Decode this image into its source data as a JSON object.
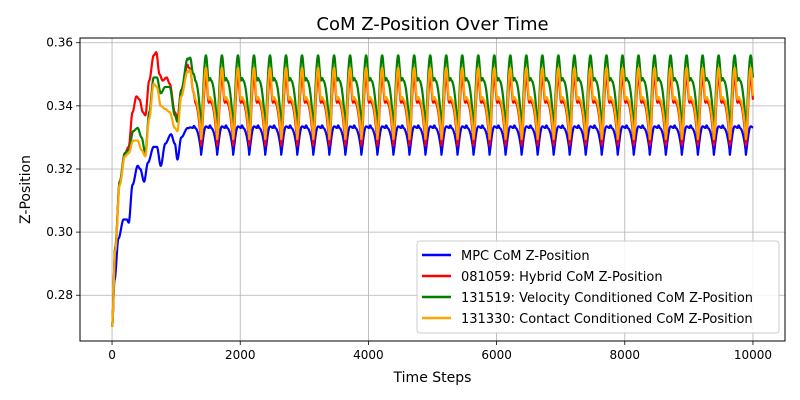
{
  "chart_data": {
    "type": "line",
    "title": "CoM Z-Position Over Time",
    "xlabel": "Time Steps",
    "ylabel": "Z-Position",
    "xlim": [
      -500,
      10500
    ],
    "ylim": [
      0.2655,
      0.3615
    ],
    "xticks": [
      0,
      2000,
      4000,
      6000,
      8000,
      10000
    ],
    "yticks": [
      0.28,
      0.3,
      0.32,
      0.34,
      0.36
    ],
    "xtick_labels": [
      "0",
      "2000",
      "4000",
      "6000",
      "8000",
      "10000"
    ],
    "ytick_labels": [
      "0.28",
      "0.30",
      "0.32",
      "0.34",
      "0.36"
    ],
    "grid": true,
    "legend_position": "lower-right",
    "period": 250,
    "x_max": 10000,
    "series": [
      {
        "name": "MPC CoM Z-Position",
        "color": "#0000ff",
        "start": 0.27,
        "key_points": [
          [
            0,
            0.27
          ],
          [
            40,
            0.285
          ],
          [
            100,
            0.298
          ],
          [
            180,
            0.304
          ],
          [
            230,
            0.304
          ],
          [
            260,
            0.303
          ],
          [
            320,
            0.315
          ],
          [
            400,
            0.321
          ],
          [
            440,
            0.32
          ],
          [
            500,
            0.316
          ],
          [
            560,
            0.322
          ],
          [
            650,
            0.327
          ],
          [
            700,
            0.327
          ],
          [
            760,
            0.321
          ],
          [
            830,
            0.328
          ],
          [
            920,
            0.331
          ],
          [
            980,
            0.328
          ],
          [
            1020,
            0.323
          ],
          [
            1080,
            0.33
          ],
          [
            1180,
            0.333
          ]
        ],
        "steady_base": 0.3245,
        "steady_peak": 0.3335,
        "steady_secondary": 0.333
      },
      {
        "name": "081059: Hybrid CoM Z-Position",
        "color": "#ff0000",
        "start": 0.27,
        "key_points": [
          [
            0,
            0.27
          ],
          [
            50,
            0.295
          ],
          [
            120,
            0.316
          ],
          [
            200,
            0.325
          ],
          [
            260,
            0.327
          ],
          [
            320,
            0.338
          ],
          [
            380,
            0.343
          ],
          [
            430,
            0.342
          ],
          [
            480,
            0.338
          ],
          [
            520,
            0.337
          ],
          [
            580,
            0.348
          ],
          [
            650,
            0.356
          ],
          [
            690,
            0.357
          ],
          [
            740,
            0.35
          ],
          [
            790,
            0.348
          ],
          [
            850,
            0.349
          ],
          [
            900,
            0.347
          ],
          [
            980,
            0.338
          ],
          [
            1020,
            0.336
          ],
          [
            1080,
            0.345
          ],
          [
            1180,
            0.353
          ]
        ],
        "steady_base": 0.3275,
        "steady_peak": 0.349,
        "steady_secondary": 0.341
      },
      {
        "name": "131519: Velocity Conditioned CoM Z-Position",
        "color": "#008000",
        "start": 0.27,
        "key_points": [
          [
            0,
            0.27
          ],
          [
            50,
            0.295
          ],
          [
            120,
            0.316
          ],
          [
            200,
            0.325
          ],
          [
            260,
            0.326
          ],
          [
            330,
            0.332
          ],
          [
            400,
            0.333
          ],
          [
            460,
            0.33
          ],
          [
            520,
            0.325
          ],
          [
            580,
            0.338
          ],
          [
            650,
            0.349
          ],
          [
            700,
            0.349
          ],
          [
            760,
            0.344
          ],
          [
            830,
            0.346
          ],
          [
            900,
            0.346
          ],
          [
            980,
            0.337
          ],
          [
            1020,
            0.335
          ],
          [
            1080,
            0.345
          ],
          [
            1180,
            0.355
          ]
        ],
        "steady_base": 0.3335,
        "steady_peak": 0.356,
        "steady_secondary": 0.348
      },
      {
        "name": "131330: Contact Conditioned CoM Z-Position",
        "color": "#ffa500",
        "start": 0.27,
        "key_points": [
          [
            0,
            0.27
          ],
          [
            50,
            0.294
          ],
          [
            120,
            0.315
          ],
          [
            200,
            0.324
          ],
          [
            260,
            0.325
          ],
          [
            330,
            0.329
          ],
          [
            400,
            0.329
          ],
          [
            460,
            0.326
          ],
          [
            520,
            0.324
          ],
          [
            580,
            0.336
          ],
          [
            650,
            0.347
          ],
          [
            700,
            0.346
          ],
          [
            760,
            0.34
          ],
          [
            830,
            0.339
          ],
          [
            900,
            0.338
          ],
          [
            980,
            0.333
          ],
          [
            1020,
            0.332
          ],
          [
            1080,
            0.343
          ],
          [
            1180,
            0.351
          ]
        ],
        "steady_base": 0.3295,
        "steady_peak": 0.352,
        "steady_secondary": 0.342
      }
    ]
  }
}
